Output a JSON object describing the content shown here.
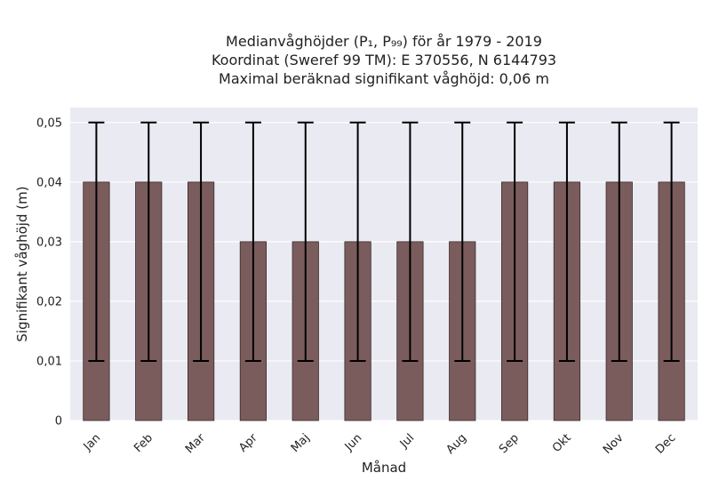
{
  "chart_data": {
    "type": "bar",
    "title_lines": [
      "Medianvåghöjder (P₁, P₉₉) för år 1979 - 2019",
      "Koordinat (Sweref 99 TM): E 370556, N 6144793",
      "Maximal beräknad signifikant våghöjd: 0,06 m"
    ],
    "xlabel": "Månad",
    "ylabel": "Signifikant våghöjd (m)",
    "categories": [
      "Jan",
      "Feb",
      "Mar",
      "Apr",
      "Maj",
      "Jun",
      "Jul",
      "Aug",
      "Sep",
      "Okt",
      "Nov",
      "Dec"
    ],
    "values": [
      0.04,
      0.04,
      0.04,
      0.03,
      0.03,
      0.03,
      0.03,
      0.03,
      0.04,
      0.04,
      0.04,
      0.04
    ],
    "error_low": [
      0.01,
      0.01,
      0.01,
      0.01,
      0.01,
      0.01,
      0.01,
      0.01,
      0.01,
      0.01,
      0.01,
      0.01
    ],
    "error_high": [
      0.05,
      0.05,
      0.05,
      0.05,
      0.05,
      0.05,
      0.05,
      0.05,
      0.05,
      0.05,
      0.05,
      0.05
    ],
    "yticks": [
      0,
      0.01,
      0.02,
      0.03,
      0.04,
      0.05
    ],
    "ytick_labels": [
      "0",
      "0,01",
      "0,02",
      "0,03",
      "0,04",
      "0,05"
    ],
    "ylim": [
      0,
      0.0525
    ],
    "grid": true,
    "colors": {
      "bar": "#7b5c5c",
      "bar_edge": "#3b2a2a",
      "error": "#000000",
      "plot_bg": "#eaeaf2",
      "grid": "#ffffff"
    }
  }
}
